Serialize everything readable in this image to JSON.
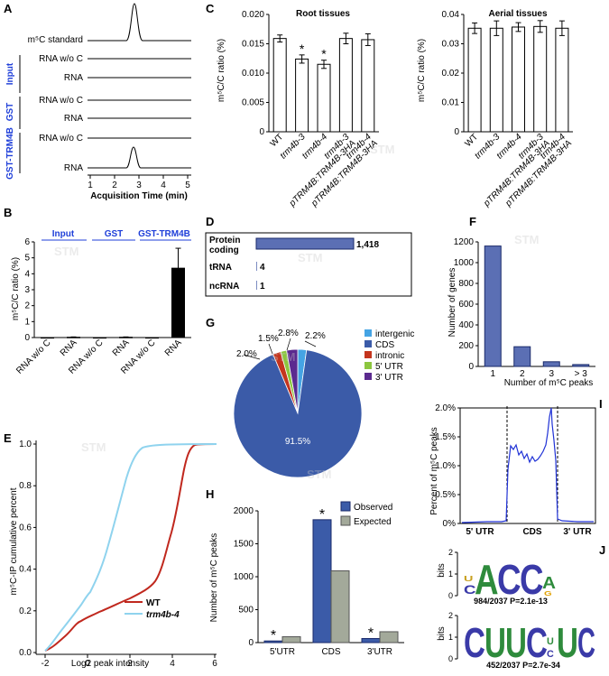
{
  "panel_letters": {
    "A": "A",
    "B": "B",
    "C": "C",
    "D": "D",
    "E": "E",
    "F": "F",
    "G": "G",
    "H": "H",
    "I": "I",
    "J": "J"
  },
  "watermark": "STM",
  "panelA": {
    "standard_label": "m⁵C standard",
    "groups": [
      {
        "name": "Input",
        "rows": [
          "RNA w/o C",
          "RNA"
        ]
      },
      {
        "name": "GST",
        "rows": [
          "RNA w/o C",
          "RNA"
        ]
      },
      {
        "name": "GST-TRM4B",
        "rows": [
          "RNA w/o C",
          "RNA"
        ]
      }
    ],
    "x_ticks": [
      "1",
      "2",
      "3",
      "4",
      "5"
    ],
    "xlabel": "Acquisition Time (min)"
  },
  "panelB": {
    "groups": [
      "Input",
      "GST",
      "GST-TRM4B"
    ],
    "categories": [
      "RNA w/o C",
      "RNA",
      "RNA w/o C",
      "RNA",
      "RNA w/o C",
      "RNA"
    ],
    "values": [
      0,
      0.02,
      0,
      0.02,
      0,
      4.35
    ],
    "errors": [
      0,
      0.02,
      0,
      0.02,
      0,
      1.25
    ],
    "ylabel": "m⁵C/C ratio (%)",
    "y_ticks": [
      "0",
      "1",
      "2",
      "3",
      "4",
      "5",
      "6"
    ]
  },
  "panelC": {
    "left": {
      "title": "Root tissues",
      "categories": [
        "WT",
        "trm4b-3",
        "trm4b-4",
        "trm4b-3 pTRM4B:TRM4B-3HA",
        "trm4b-4 pTRM4B:TRM4B-3HA"
      ],
      "values": [
        0.0159,
        0.0124,
        0.0115,
        0.0159,
        0.0157
      ],
      "errors": [
        0.0006,
        0.0007,
        0.0007,
        0.0009,
        0.001
      ],
      "star": [
        false,
        true,
        true,
        false,
        false
      ],
      "y_ticks": [
        "0",
        "0.005",
        "0.010",
        "0.015",
        "0.020"
      ]
    },
    "right": {
      "title": "Aerial tissues",
      "categories": [
        "WT",
        "trm4b-3",
        "trm4b-4",
        "trm4b-3 pTRM4B:TRM4B-3HA",
        "trm4b-4 pTRM4B:TRM4B-3HA"
      ],
      "values": [
        0.0353,
        0.0353,
        0.0357,
        0.0359,
        0.0353
      ],
      "errors": [
        0.0018,
        0.0025,
        0.0015,
        0.002,
        0.0025
      ],
      "y_ticks": [
        "0",
        "0.01",
        "0.02",
        "0.03",
        "0.04"
      ]
    },
    "ylabel": "m⁵C/C ratio (%)",
    "star_glyph": "*"
  },
  "panelD": {
    "rows": [
      {
        "label": "Protein coding",
        "value": 1418,
        "text": "1,418"
      },
      {
        "label": "tRNA",
        "value": 4,
        "text": "4"
      },
      {
        "label": "ncRNA",
        "value": 1,
        "text": "1"
      }
    ]
  },
  "panelE": {
    "ylabel": "m⁵C-IP cumulative percent",
    "xlabel": "Log2 peak intensity",
    "x_ticks": [
      "-2",
      "0",
      "2",
      "4",
      "6"
    ],
    "y_ticks": [
      "0.0",
      "0.2",
      "0.4",
      "0.6",
      "0.8",
      "1.0"
    ],
    "legend": [
      {
        "name": "WT",
        "color": "#c0281e"
      },
      {
        "name": "trm4b-4",
        "color": "#8fd3ee"
      }
    ]
  },
  "panelF": {
    "categories": [
      "1",
      "2",
      "3",
      "> 3"
    ],
    "values": [
      1160,
      190,
      45,
      18
    ],
    "ylabel": "Number of genes",
    "xlabel": "Number of m⁵C peaks",
    "y_ticks": [
      "0",
      "200",
      "400",
      "600",
      "800",
      "1000",
      "1200"
    ]
  },
  "panelG": {
    "slices": [
      {
        "name": "intergenic",
        "value": 2.2,
        "label": "2.2%",
        "color": "#45a4e4"
      },
      {
        "name": "CDS",
        "value": 91.5,
        "label": "91.5%",
        "color": "#3b5ba8"
      },
      {
        "name": "intronic",
        "value": 2.0,
        "label": "2.0%",
        "color": "#c4351e"
      },
      {
        "name": "5' UTR",
        "value": 1.5,
        "label": "1.5%",
        "color": "#8cc63f"
      },
      {
        "name": "3' UTR",
        "value": 2.8,
        "label": "2.8%",
        "color": "#5b2a8f"
      }
    ]
  },
  "panelH": {
    "categories": [
      "5'UTR",
      "CDS",
      "3'UTR"
    ],
    "observed": [
      25,
      1865,
      62
    ],
    "expected": [
      90,
      1090,
      165
    ],
    "legend": [
      "Observed",
      "Expected"
    ],
    "ylabel": "Number of m⁵C peaks",
    "y_ticks": [
      "0",
      "500",
      "1000",
      "1500",
      "2000"
    ]
  },
  "panelI": {
    "ylabel": "Percent of m⁵C peaks",
    "y_ticks": [
      "0%",
      "0.5%",
      "1.0%",
      "1.5%",
      "2.0%"
    ],
    "regions": [
      "5' UTR",
      "CDS",
      "3' UTR"
    ]
  },
  "panelJ": {
    "motif1": {
      "letters": "CACCAG",
      "caption": "984/2037  P=2.1e-13"
    },
    "motif2": {
      "letters": "CUUCUCUC",
      "caption": "452/2037  P=2.7e-34"
    },
    "ylabel": "bits",
    "y_ticks": [
      "0",
      "1",
      "2"
    ]
  }
}
